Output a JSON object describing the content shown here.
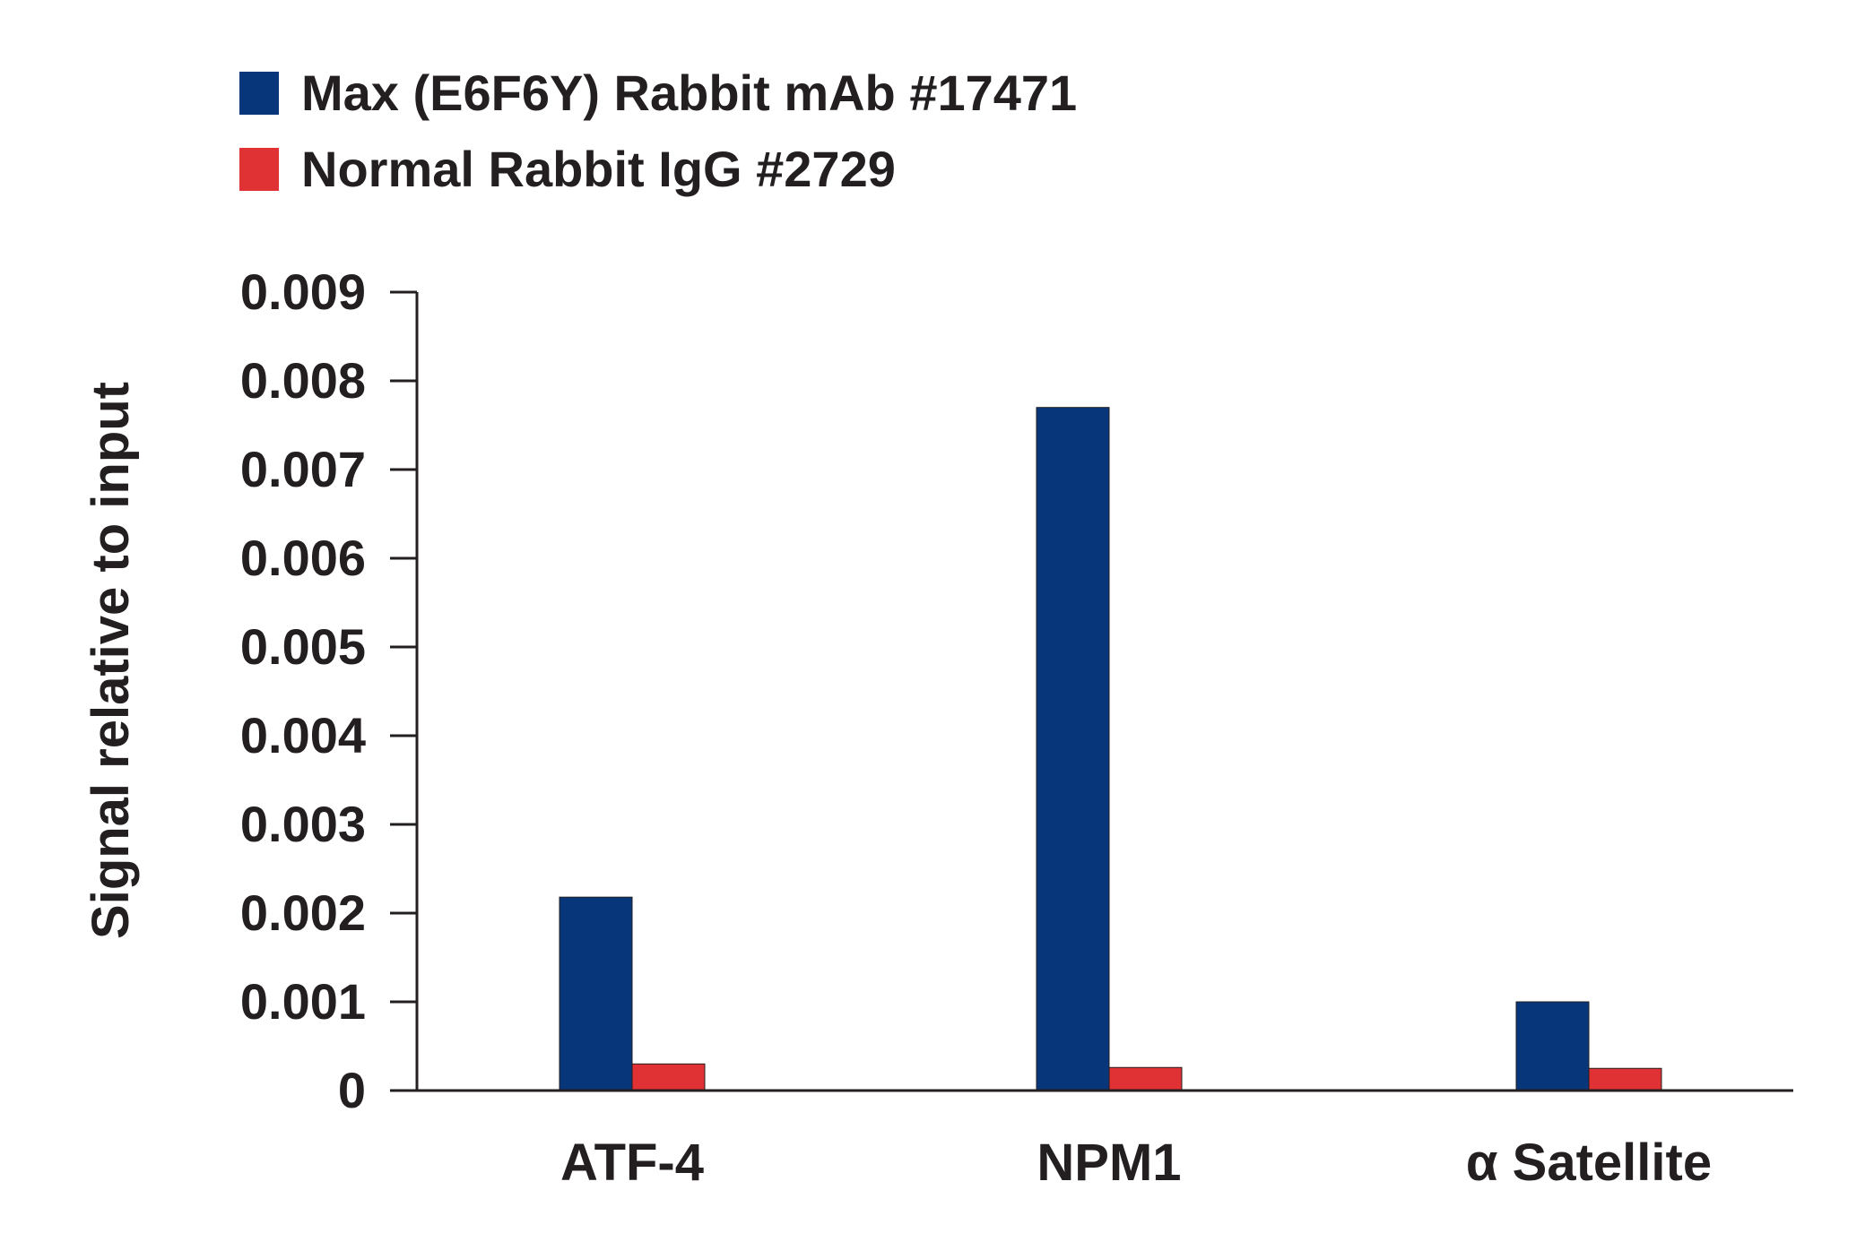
{
  "chart_data": {
    "type": "bar",
    "title": "",
    "xlabel": "",
    "ylabel": "Signal relative to input",
    "categories": [
      "ATF-4",
      "NPM1",
      "α Satellite"
    ],
    "series": [
      {
        "name": "Max (E6F6Y) Rabbit mAb #17471",
        "color": "#08367a",
        "values": [
          0.00218,
          0.0077,
          0.001
        ]
      },
      {
        "name": "Normal Rabbit IgG #2729",
        "color": "#e03134",
        "values": [
          0.0003,
          0.00026,
          0.00025
        ]
      }
    ],
    "ylim": [
      0,
      0.009
    ],
    "yticks": [
      "0",
      "0.001",
      "0.002",
      "0.003",
      "0.004",
      "0.005",
      "0.006",
      "0.007",
      "0.008",
      "0.009"
    ],
    "grid": false,
    "legend_position": "top-left"
  }
}
